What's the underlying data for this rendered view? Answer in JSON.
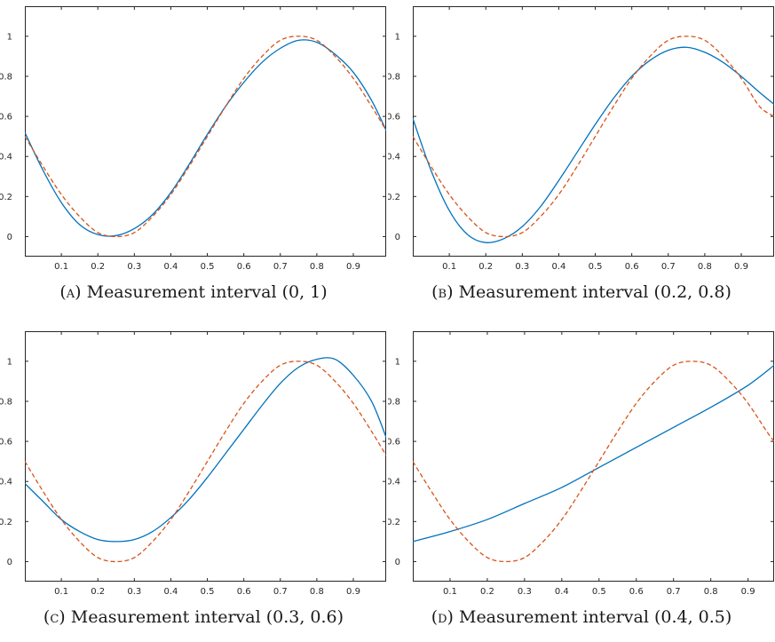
{
  "chart_data": [
    {
      "type": "line",
      "caption": {
        "tag": "(a)",
        "text": "Measurement interval (0, 1)"
      },
      "xlim": [
        0,
        0.99
      ],
      "ylim": [
        -0.1,
        1.15
      ],
      "xticks": [
        0.1,
        0.2,
        0.3,
        0.4,
        0.5,
        0.6,
        0.7,
        0.8,
        0.9
      ],
      "yticks": [
        0,
        0.2,
        0.4,
        0.6,
        0.8,
        1
      ],
      "series": [
        {
          "color": "#0072BD",
          "style": "solid",
          "x": [
            0.0,
            0.05,
            0.1,
            0.15,
            0.2,
            0.25,
            0.3,
            0.35,
            0.4,
            0.45,
            0.5,
            0.55,
            0.6,
            0.65,
            0.7,
            0.75,
            0.8,
            0.85,
            0.9,
            0.95,
            0.99
          ],
          "y": [
            0.52,
            0.33,
            0.17,
            0.06,
            0.01,
            0.005,
            0.04,
            0.11,
            0.22,
            0.36,
            0.51,
            0.65,
            0.77,
            0.87,
            0.94,
            0.98,
            0.97,
            0.91,
            0.82,
            0.68,
            0.53
          ]
        },
        {
          "color": "#D95319",
          "style": "dashed",
          "x": [
            0.0,
            0.05,
            0.1,
            0.15,
            0.2,
            0.25,
            0.3,
            0.35,
            0.4,
            0.45,
            0.5,
            0.55,
            0.6,
            0.65,
            0.7,
            0.75,
            0.8,
            0.85,
            0.9,
            0.95,
            0.99
          ],
          "y": [
            0.5,
            0.35,
            0.21,
            0.1,
            0.02,
            0.0,
            0.02,
            0.1,
            0.21,
            0.35,
            0.5,
            0.65,
            0.79,
            0.9,
            0.98,
            1.0,
            0.98,
            0.9,
            0.79,
            0.65,
            0.53
          ]
        }
      ]
    },
    {
      "type": "line",
      "caption": {
        "tag": "(b)",
        "text": "Measurement interval (0.2, 0.8)"
      },
      "xlim": [
        0,
        0.99
      ],
      "ylim": [
        -0.1,
        1.15
      ],
      "xticks": [
        0.1,
        0.2,
        0.3,
        0.4,
        0.5,
        0.6,
        0.7,
        0.8,
        0.9
      ],
      "yticks": [
        0,
        0.2,
        0.4,
        0.6,
        0.8,
        1
      ],
      "series": [
        {
          "color": "#0072BD",
          "style": "solid",
          "x": [
            0.0,
            0.05,
            0.1,
            0.15,
            0.2,
            0.25,
            0.3,
            0.35,
            0.4,
            0.45,
            0.5,
            0.55,
            0.6,
            0.65,
            0.7,
            0.75,
            0.8,
            0.85,
            0.9,
            0.95,
            0.99
          ],
          "y": [
            0.59,
            0.33,
            0.13,
            0.01,
            -0.03,
            -0.01,
            0.05,
            0.15,
            0.28,
            0.42,
            0.56,
            0.69,
            0.8,
            0.88,
            0.93,
            0.945,
            0.92,
            0.87,
            0.8,
            0.72,
            0.66
          ]
        },
        {
          "color": "#D95319",
          "style": "dashed",
          "x": [
            0.0,
            0.05,
            0.1,
            0.15,
            0.2,
            0.25,
            0.3,
            0.35,
            0.4,
            0.45,
            0.5,
            0.55,
            0.6,
            0.65,
            0.7,
            0.75,
            0.8,
            0.85,
            0.9,
            0.95,
            0.99
          ],
          "y": [
            0.5,
            0.35,
            0.21,
            0.1,
            0.02,
            0.0,
            0.02,
            0.1,
            0.21,
            0.35,
            0.5,
            0.65,
            0.79,
            0.9,
            0.98,
            1.0,
            0.98,
            0.9,
            0.79,
            0.65,
            0.6
          ]
        }
      ]
    },
    {
      "type": "line",
      "caption": {
        "tag": "(c)",
        "text": "Measurement interval (0.3, 0.6)"
      },
      "xlim": [
        0,
        0.99
      ],
      "ylim": [
        -0.1,
        1.15
      ],
      "xticks": [
        0.1,
        0.2,
        0.3,
        0.4,
        0.5,
        0.6,
        0.7,
        0.8,
        0.9
      ],
      "yticks": [
        0,
        0.2,
        0.4,
        0.6,
        0.8,
        1
      ],
      "series": [
        {
          "color": "#0072BD",
          "style": "solid",
          "x": [
            0.0,
            0.05,
            0.1,
            0.15,
            0.2,
            0.25,
            0.3,
            0.35,
            0.4,
            0.45,
            0.5,
            0.55,
            0.6,
            0.65,
            0.7,
            0.75,
            0.8,
            0.85,
            0.9,
            0.95,
            0.99
          ],
          "y": [
            0.39,
            0.3,
            0.21,
            0.15,
            0.11,
            0.1,
            0.11,
            0.15,
            0.22,
            0.31,
            0.42,
            0.54,
            0.66,
            0.78,
            0.89,
            0.97,
            1.01,
            1.01,
            0.93,
            0.8,
            0.62
          ]
        },
        {
          "color": "#D95319",
          "style": "dashed",
          "x": [
            0.0,
            0.05,
            0.1,
            0.15,
            0.2,
            0.25,
            0.3,
            0.35,
            0.4,
            0.45,
            0.5,
            0.55,
            0.6,
            0.65,
            0.7,
            0.75,
            0.8,
            0.85,
            0.9,
            0.95,
            0.99
          ],
          "y": [
            0.5,
            0.35,
            0.21,
            0.1,
            0.02,
            0.0,
            0.02,
            0.1,
            0.21,
            0.35,
            0.5,
            0.65,
            0.79,
            0.9,
            0.98,
            1.0,
            0.98,
            0.9,
            0.79,
            0.65,
            0.53
          ]
        }
      ]
    },
    {
      "type": "line",
      "caption": {
        "tag": "(d)",
        "text": "Measurement interval (0.4, 0.5)"
      },
      "xlim": [
        0,
        0.97
      ],
      "ylim": [
        -0.1,
        1.15
      ],
      "xticks": [
        0.1,
        0.2,
        0.3,
        0.4,
        0.5,
        0.6,
        0.7,
        0.8,
        0.9
      ],
      "yticks": [
        0,
        0.2,
        0.4,
        0.6,
        0.8,
        1
      ],
      "series": [
        {
          "color": "#0072BD",
          "style": "solid",
          "x": [
            0.0,
            0.1,
            0.2,
            0.3,
            0.4,
            0.5,
            0.6,
            0.7,
            0.8,
            0.9,
            0.97
          ],
          "y": [
            0.1,
            0.15,
            0.21,
            0.29,
            0.37,
            0.47,
            0.57,
            0.67,
            0.77,
            0.88,
            0.98
          ]
        },
        {
          "color": "#D95319",
          "style": "dashed",
          "x": [
            0.0,
            0.05,
            0.1,
            0.15,
            0.2,
            0.25,
            0.3,
            0.35,
            0.4,
            0.45,
            0.5,
            0.55,
            0.6,
            0.65,
            0.7,
            0.75,
            0.8,
            0.85,
            0.9,
            0.95,
            0.97
          ],
          "y": [
            0.5,
            0.35,
            0.21,
            0.1,
            0.02,
            0.0,
            0.02,
            0.1,
            0.21,
            0.35,
            0.5,
            0.65,
            0.79,
            0.9,
            0.98,
            1.0,
            0.98,
            0.9,
            0.79,
            0.65,
            0.6
          ]
        }
      ]
    }
  ]
}
